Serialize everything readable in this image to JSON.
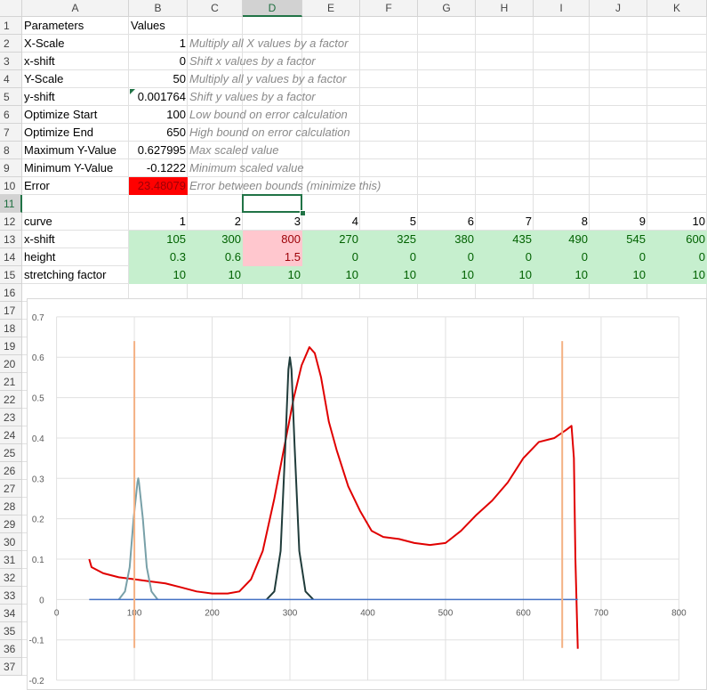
{
  "columns": [
    "A",
    "B",
    "C",
    "D",
    "E",
    "F",
    "G",
    "H",
    "I",
    "J",
    "K"
  ],
  "rows": [
    "1",
    "2",
    "3",
    "4",
    "5",
    "6",
    "7",
    "8",
    "9",
    "10",
    "11",
    "12",
    "13",
    "14",
    "15",
    "16",
    "17",
    "18",
    "19",
    "20",
    "21",
    "22",
    "23",
    "24",
    "25",
    "26",
    "27",
    "28",
    "29",
    "30",
    "31",
    "32",
    "33",
    "34",
    "35",
    "36",
    "37"
  ],
  "params": {
    "header": {
      "a": "Parameters",
      "b": "Values"
    },
    "items": [
      {
        "name": "X-Scale",
        "value": "1",
        "comment": "Multiply all X values by a factor"
      },
      {
        "name": "x-shift",
        "value": "0",
        "comment": "Shift x values by a factor"
      },
      {
        "name": "Y-Scale",
        "value": "50",
        "comment": "Multiply all y values by a factor"
      },
      {
        "name": "y-shift",
        "value": "0.001764",
        "comment": "Shift y values by a factor"
      },
      {
        "name": "Optimize Start",
        "value": "100",
        "comment": "Low bound on error calculation"
      },
      {
        "name": "Optimize End",
        "value": "650",
        "comment": "High bound on error calculation"
      },
      {
        "name": "Maximum Y-Value",
        "value": "0.627995",
        "comment": "Max scaled value"
      },
      {
        "name": "Minimum Y-Value",
        "value": "-0.1222",
        "comment": "Minimum scaled value"
      },
      {
        "name": "Error",
        "value": "23.48079",
        "comment": "Error between bounds (minimize this)"
      }
    ]
  },
  "curves": {
    "label": "curve",
    "numbers": [
      "1",
      "2",
      "3",
      "4",
      "5",
      "6",
      "7",
      "8",
      "9",
      "10"
    ],
    "rows": [
      {
        "label": "x-shift",
        "values": [
          "105",
          "300",
          "800",
          "270",
          "325",
          "380",
          "435",
          "490",
          "545",
          "600"
        ]
      },
      {
        "label": "height",
        "values": [
          "0.3",
          "0.6",
          "1.5",
          "0",
          "0",
          "0",
          "0",
          "0",
          "0",
          "0"
        ]
      },
      {
        "label": "stretching factor",
        "values": [
          "10",
          "10",
          "10",
          "10",
          "10",
          "10",
          "10",
          "10",
          "10",
          "10"
        ]
      }
    ]
  },
  "chart_data": {
    "type": "line",
    "xlim": [
      0,
      800
    ],
    "ylim": [
      -0.2,
      0.7
    ],
    "x_ticks": [
      "0",
      "100",
      "200",
      "300",
      "400",
      "500",
      "600",
      "700",
      "800"
    ],
    "y_ticks": [
      "0.7",
      "0.6",
      "0.5",
      "0.4",
      "0.3",
      "0.2",
      "0.1",
      "0",
      "-0.1",
      "-0.2"
    ],
    "grid": true,
    "series": [
      {
        "color": "#e00000",
        "points": [
          [
            42,
            0.1
          ],
          [
            45,
            0.08
          ],
          [
            60,
            0.065
          ],
          [
            80,
            0.055
          ],
          [
            100,
            0.05
          ],
          [
            120,
            0.045
          ],
          [
            140,
            0.04
          ],
          [
            160,
            0.03
          ],
          [
            180,
            0.02
          ],
          [
            200,
            0.015
          ],
          [
            220,
            0.015
          ],
          [
            235,
            0.02
          ],
          [
            250,
            0.05
          ],
          [
            265,
            0.12
          ],
          [
            280,
            0.25
          ],
          [
            295,
            0.4
          ],
          [
            305,
            0.5
          ],
          [
            315,
            0.58
          ],
          [
            325,
            0.625
          ],
          [
            332,
            0.61
          ],
          [
            340,
            0.55
          ],
          [
            350,
            0.44
          ],
          [
            360,
            0.37
          ],
          [
            375,
            0.28
          ],
          [
            390,
            0.22
          ],
          [
            405,
            0.17
          ],
          [
            420,
            0.155
          ],
          [
            440,
            0.15
          ],
          [
            460,
            0.14
          ],
          [
            480,
            0.135
          ],
          [
            500,
            0.14
          ],
          [
            520,
            0.17
          ],
          [
            540,
            0.21
          ],
          [
            560,
            0.245
          ],
          [
            580,
            0.29
          ],
          [
            600,
            0.35
          ],
          [
            620,
            0.39
          ],
          [
            640,
            0.4
          ],
          [
            655,
            0.42
          ],
          [
            662,
            0.43
          ],
          [
            665,
            0.35
          ],
          [
            667,
            0.1
          ],
          [
            669,
            -0.05
          ],
          [
            670,
            -0.122
          ]
        ]
      },
      {
        "color": "#78a0a8",
        "points": [
          [
            80,
            0
          ],
          [
            88,
            0.02
          ],
          [
            94,
            0.08
          ],
          [
            99,
            0.2
          ],
          [
            104,
            0.29
          ],
          [
            105,
            0.3
          ],
          [
            106,
            0.29
          ],
          [
            111,
            0.2
          ],
          [
            116,
            0.08
          ],
          [
            122,
            0.02
          ],
          [
            130,
            0
          ]
        ]
      },
      {
        "color": "#1f3b3a",
        "points": [
          [
            270,
            0
          ],
          [
            280,
            0.02
          ],
          [
            288,
            0.12
          ],
          [
            294,
            0.38
          ],
          [
            298,
            0.57
          ],
          [
            300,
            0.6
          ],
          [
            302,
            0.57
          ],
          [
            306,
            0.38
          ],
          [
            312,
            0.12
          ],
          [
            320,
            0.02
          ],
          [
            330,
            0
          ]
        ]
      },
      {
        "color": "#4472c4",
        "points": [
          [
            42,
            0
          ],
          [
            670,
            0
          ]
        ]
      },
      {
        "color": "#f4b183",
        "points": [
          [
            100,
            -0.12
          ],
          [
            100,
            0.64
          ]
        ]
      },
      {
        "color": "#f4b183",
        "points": [
          [
            650,
            -0.12
          ],
          [
            650,
            0.64
          ]
        ]
      }
    ]
  }
}
